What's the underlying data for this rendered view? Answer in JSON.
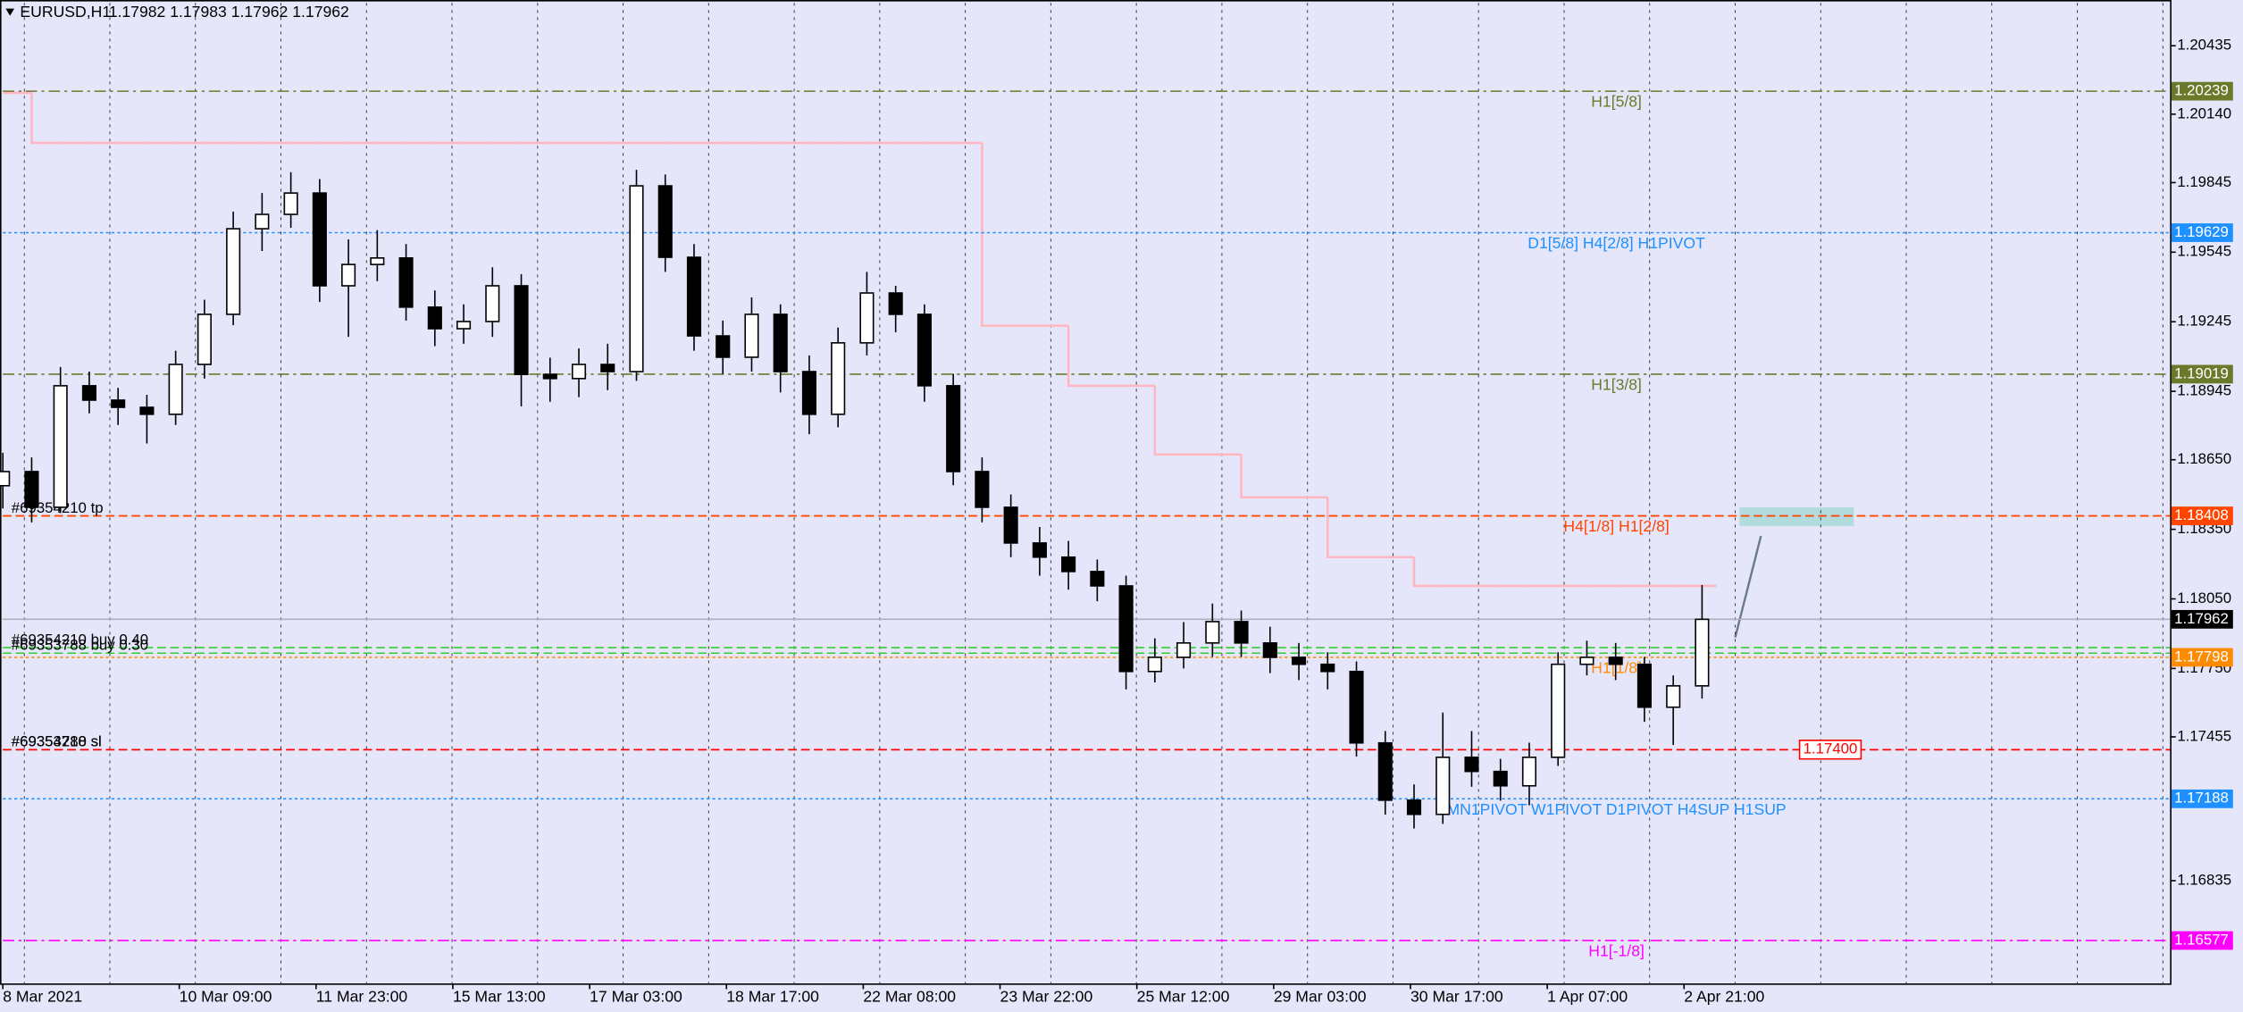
{
  "chart_data": {
    "type": "candlestick",
    "title": "EURUSD,H1",
    "subtitle": "1.17982 1.17983 1.17962 1.17962",
    "color": "#000000",
    "x": [
      0,
      8,
      16,
      24,
      32,
      40,
      48,
      56,
      64,
      72,
      80,
      88,
      96,
      104,
      112,
      120,
      128,
      136,
      144,
      152,
      160,
      168,
      176,
      184,
      192,
      200,
      208,
      216,
      224,
      232,
      240,
      248,
      256,
      264,
      272,
      280,
      288,
      296,
      304,
      312,
      320,
      328,
      336,
      344,
      352,
      360,
      368,
      376,
      384,
      392,
      400,
      408,
      416,
      424,
      432,
      440,
      448,
      456,
      464,
      472
    ],
    "open": [
      1.18538,
      1.18599,
      1.18445,
      1.18969,
      1.18907,
      1.18876,
      1.18846,
      1.19061,
      1.19277,
      1.19646,
      1.19708,
      1.198,
      1.194,
      1.19492,
      1.1952,
      1.19308,
      1.19215,
      1.19246,
      1.194,
      1.19018,
      1.19,
      1.19061,
      1.1903,
      1.19831,
      1.19523,
      1.19184,
      1.19092,
      1.19277,
      1.1903,
      1.18846,
      1.19154,
      1.19369,
      1.19277,
      1.18969,
      1.18599,
      1.18445,
      1.18291,
      1.1823,
      1.18168,
      1.18106,
      1.17737,
      1.17798,
      1.1786,
      1.17952,
      1.1786,
      1.17798,
      1.17768,
      1.17737,
      1.17429,
      1.17182,
      1.17121,
      1.17367,
      1.17306,
      1.17244,
      1.17367,
      1.17768,
      1.17798,
      1.17768,
      1.17583,
      1.17675
    ],
    "high": [
      1.1868,
      1.1866,
      1.1905,
      1.1903,
      1.1896,
      1.1893,
      1.1912,
      1.1934,
      1.1972,
      1.198,
      1.1989,
      1.1986,
      1.196,
      1.1964,
      1.1958,
      1.1938,
      1.1932,
      1.1948,
      1.1945,
      1.1909,
      1.1913,
      1.1915,
      1.199,
      1.1988,
      1.1958,
      1.1925,
      1.1935,
      1.1932,
      1.191,
      1.1922,
      1.1946,
      1.194,
      1.1932,
      1.1902,
      1.1866,
      1.185,
      1.1836,
      1.183,
      1.1822,
      1.1815,
      1.1788,
      1.1795,
      1.1803,
      1.18,
      1.1793,
      1.1786,
      1.1782,
      1.1778,
      1.1748,
      1.1725,
      1.1756,
      1.1748,
      1.1736,
      1.1743,
      1.1782,
      1.1787,
      1.1786,
      1.178,
      1.1772,
      1.1811
    ],
    "low": [
      1.1844,
      1.1838,
      1.1842,
      1.1885,
      1.188,
      1.1872,
      1.188,
      1.19,
      1.1923,
      1.1955,
      1.1965,
      1.1933,
      1.1918,
      1.1942,
      1.1925,
      1.1914,
      1.1915,
      1.1918,
      1.1888,
      1.189,
      1.1892,
      1.1895,
      1.1899,
      1.1946,
      1.1912,
      1.1902,
      1.1903,
      1.1894,
      1.1876,
      1.1879,
      1.191,
      1.192,
      1.189,
      1.1854,
      1.1838,
      1.1823,
      1.1815,
      1.1809,
      1.1804,
      1.1766,
      1.1769,
      1.1775,
      1.178,
      1.178,
      1.1773,
      1.177,
      1.1766,
      1.1737,
      1.1712,
      1.1706,
      1.1708,
      1.1724,
      1.1718,
      1.1716,
      1.1733,
      1.1772,
      1.177,
      1.1752,
      1.1742,
      1.1762
    ],
    "close": [
      1.18599,
      1.18445,
      1.18969,
      1.18907,
      1.18876,
      1.18846,
      1.19061,
      1.19277,
      1.19646,
      1.19708,
      1.198,
      1.194,
      1.19492,
      1.1952,
      1.19308,
      1.19215,
      1.19246,
      1.194,
      1.19018,
      1.19,
      1.19061,
      1.1903,
      1.19831,
      1.19523,
      1.19184,
      1.19092,
      1.19277,
      1.1903,
      1.18846,
      1.19154,
      1.19369,
      1.19277,
      1.18969,
      1.18599,
      1.18445,
      1.18291,
      1.1823,
      1.18168,
      1.18106,
      1.17737,
      1.17798,
      1.1786,
      1.17952,
      1.1786,
      1.17798,
      1.17768,
      1.17737,
      1.17429,
      1.17182,
      1.17121,
      1.17367,
      1.17306,
      1.17244,
      1.17367,
      1.17768,
      1.17798,
      1.17768,
      1.17583,
      1.17675,
      1.17962
    ],
    "overlay": {
      "color": "#ffb6c1",
      "values": [
        1.20232,
        1.20016,
        1.20016,
        1.20016,
        1.20016,
        1.20016,
        1.20016,
        1.20016,
        1.20016,
        1.20016,
        1.20016,
        1.20016,
        1.20016,
        1.20016,
        1.20016,
        1.20016,
        1.20016,
        1.20016,
        1.20016,
        1.20016,
        1.20016,
        1.20016,
        1.20016,
        1.20016,
        1.20016,
        1.20016,
        1.20016,
        1.20016,
        1.20016,
        1.20016,
        1.20016,
        1.20016,
        1.20016,
        1.20016,
        1.19228,
        1.19228,
        1.19228,
        1.18969,
        1.18969,
        1.18969,
        1.18673,
        1.18673,
        1.18673,
        1.18488,
        1.18488,
        1.18488,
        1.1823,
        1.1823,
        1.1823,
        1.18106,
        1.18106,
        1.18106,
        1.18106,
        1.18106,
        1.18106,
        1.18106,
        1.18106,
        1.18106,
        1.18106,
        1.18106
      ]
    },
    "xlim": [
      0,
      602
    ],
    "xticks": [
      {
        "value": 0,
        "label": "8 Mar 2021"
      },
      {
        "value": 49,
        "label": "10 Mar 09:00"
      },
      {
        "value": 87,
        "label": "11 Mar 23:00"
      },
      {
        "value": 125,
        "label": "15 Mar 13:00"
      },
      {
        "value": 163,
        "label": "17 Mar 03:00"
      },
      {
        "value": 201,
        "label": "18 Mar 17:00"
      },
      {
        "value": 239,
        "label": "22 Mar 08:00"
      },
      {
        "value": 277,
        "label": "23 Mar 22:00"
      },
      {
        "value": 315,
        "label": "25 Mar 12:00"
      },
      {
        "value": 353,
        "label": "29 Mar 03:00"
      },
      {
        "value": 391,
        "label": "30 Mar 17:00"
      },
      {
        "value": 429,
        "label": "1 Apr 07:00"
      },
      {
        "value": 467,
        "label": "2 Apr 21:00"
      }
    ],
    "ylim": [
      1.16392,
      1.2062
    ],
    "yticks": [
      1.20435,
      {
        "value": 1.2014,
        "label": "1.20140"
      },
      1.19845,
      1.19545,
      1.19245,
      1.18945,
      {
        "value": 1.1865,
        "label": "1.18650"
      },
      {
        "value": 1.1835,
        "label": "1.18350"
      },
      {
        "value": 1.1805,
        "label": "1.18050"
      },
      {
        "value": 1.1775,
        "label": "1.17750"
      },
      1.17455,
      1.16835
    ],
    "grid": true,
    "levels": [
      {
        "value": 1.20239,
        "text": "H1[5/8]",
        "color": "#6b7a2a",
        "dash": "dashdot"
      },
      {
        "value": 1.19629,
        "text": "D1[5/8] H4[2/8] H1PIVOT",
        "color": "#1e90ff",
        "dash": "dotted"
      },
      {
        "value": 1.19019,
        "text": "H1[3/8]",
        "color": "#6b7a2a",
        "dash": "dashdot"
      },
      {
        "value": 1.18408,
        "text": "H4[1/8] H1[2/8]",
        "color": "#ff4500",
        "dash": "dashed"
      },
      {
        "value": 1.17798,
        "text": "H1[1/8]",
        "color": "#ff8c00",
        "dash": "dotted"
      },
      {
        "value": 1.17188,
        "text": "MN1PIVOT W1PIVOT D1PIVOT H4SUP H1SUP",
        "color": "#1e90ff",
        "dash": "dotted"
      },
      {
        "value": 1.16577,
        "text": "H1[-1/8]",
        "color": "#ff00ff",
        "dash": "dashdot"
      }
    ],
    "current_price": {
      "value": 1.17962,
      "color": "#000000"
    },
    "orders": [
      {
        "value": 1.18408,
        "label": "#69354210 tp",
        "color": "#ff4500"
      },
      {
        "value": 1.1784,
        "label": "#69354210 buy 0.40",
        "color": "#32cd32"
      },
      {
        "value": 1.17816,
        "label": "#69353788 buy 0.30",
        "color": "#32cd32"
      },
      {
        "value": 1.174,
        "label": "#69353788 sl",
        "color": "#ff0000"
      },
      {
        "value": 1.174,
        "label": "#69354210 sl",
        "color": "#ff0000"
      }
    ],
    "stop_box": {
      "value": 1.174,
      "label": "1.17400",
      "color": "#ff0000"
    }
  }
}
